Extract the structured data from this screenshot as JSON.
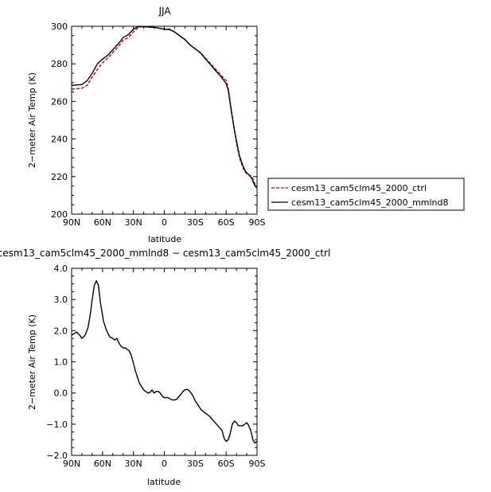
{
  "chart_data": [
    {
      "type": "line",
      "title": "JJA",
      "xlabel": "latitude",
      "ylabel": "2−meter Air Temp (K)",
      "xlim": [
        90,
        -90
      ],
      "ylim": [
        200,
        300
      ],
      "x_ticks": [
        90,
        60,
        30,
        0,
        -30,
        -60,
        -90
      ],
      "x_tick_labels": [
        "90N",
        "60N",
        "30N",
        "0",
        "30S",
        "60S",
        "90S"
      ],
      "y_ticks": [
        200,
        220,
        240,
        260,
        280,
        300
      ],
      "y_tick_labels": [
        "200",
        "220",
        "240",
        "260",
        "280",
        "300"
      ],
      "grid": false,
      "legend_position": "right",
      "series": [
        {
          "name": "cesm13_cam5clm45_2000_ctrl",
          "color": "#cc0000",
          "dash": "dashed",
          "x": [
            90,
            80,
            75,
            70,
            65,
            60,
            55,
            50,
            45,
            40,
            35,
            30,
            25,
            20,
            15,
            10,
            5,
            0,
            -5,
            -10,
            -15,
            -20,
            -25,
            -30,
            -35,
            -40,
            -45,
            -50,
            -55,
            -60,
            -62,
            -65,
            -68,
            -70,
            -73,
            -76,
            -79,
            -82,
            -85,
            -88,
            -90
          ],
          "y": [
            266.5,
            267,
            268.5,
            273,
            277,
            280.5,
            283,
            286,
            289,
            292.5,
            294,
            297,
            299.5,
            300,
            299.5,
            299.5,
            299,
            298.5,
            298.5,
            297,
            295,
            293,
            290,
            288,
            286,
            283,
            280,
            277,
            274,
            271,
            267,
            256,
            245,
            238,
            230,
            225,
            222,
            221,
            220,
            216,
            215
          ]
        },
        {
          "name": "cesm13_cam5clm45_2000_mmlnd8",
          "color": "#000000",
          "dash": "solid",
          "x": [
            90,
            80,
            75,
            70,
            65,
            60,
            55,
            50,
            45,
            40,
            35,
            30,
            25,
            20,
            15,
            10,
            5,
            0,
            -5,
            -10,
            -15,
            -20,
            -25,
            -30,
            -35,
            -40,
            -45,
            -50,
            -55,
            -60,
            -62,
            -65,
            -68,
            -70,
            -73,
            -76,
            -79,
            -82,
            -85,
            -88,
            -90
          ],
          "y": [
            268.5,
            269,
            271,
            275,
            280,
            282.5,
            284.5,
            287.5,
            290.5,
            294,
            295.5,
            298.5,
            299.8,
            299.8,
            299.6,
            299.4,
            299,
            298.4,
            298.3,
            296.9,
            294.9,
            292.9,
            290.1,
            288,
            285.8,
            282.6,
            279.4,
            276.2,
            273.2,
            269.5,
            266,
            255,
            245,
            239,
            231,
            226,
            222.5,
            221,
            219,
            215,
            214
          ]
        }
      ]
    },
    {
      "type": "line",
      "title": "cesm13_cam5clm45_2000_mmlnd8 − cesm13_cam5clm45_2000_ctrl",
      "xlabel": "latitude",
      "ylabel": "2−meter Air Temp (K)",
      "xlim": [
        90,
        -90
      ],
      "ylim": [
        -2,
        4
      ],
      "x_ticks": [
        90,
        60,
        30,
        0,
        -30,
        -60,
        -90
      ],
      "x_tick_labels": [
        "90N",
        "60N",
        "30N",
        "0",
        "30S",
        "60S",
        "90S"
      ],
      "y_ticks": [
        -2,
        -1,
        0,
        1,
        2,
        3,
        4
      ],
      "y_tick_labels": [
        "−2.0",
        "−1.0",
        "0.0",
        "1.0",
        "2.0",
        "3.0",
        "4.0"
      ],
      "grid": false,
      "series": [
        {
          "color": "#000000",
          "dash": "solid",
          "x": [
            90,
            88,
            85,
            82,
            80,
            77,
            74,
            72,
            70,
            68,
            66,
            64,
            62,
            59,
            56,
            53,
            50,
            48,
            46,
            44,
            42,
            40,
            38,
            36,
            34,
            32,
            30,
            28,
            26,
            24,
            22,
            20,
            18,
            16,
            14,
            12,
            10,
            8,
            6,
            4,
            2,
            0,
            -2,
            -4,
            -6,
            -8,
            -10,
            -12,
            -14,
            -16,
            -18,
            -20,
            -22,
            -24,
            -26,
            -28,
            -30,
            -33,
            -36,
            -40,
            -44,
            -48,
            -52,
            -56,
            -58,
            -60,
            -62,
            -64,
            -66,
            -68,
            -70,
            -72,
            -74,
            -76,
            -78,
            -80,
            -82,
            -84,
            -86,
            -88,
            -90
          ],
          "y": [
            1.85,
            1.9,
            1.95,
            1.85,
            1.75,
            1.85,
            2.1,
            2.5,
            3.0,
            3.45,
            3.6,
            3.45,
            2.9,
            2.3,
            2.0,
            1.8,
            1.75,
            1.7,
            1.75,
            1.6,
            1.5,
            1.45,
            1.45,
            1.4,
            1.35,
            1.2,
            0.95,
            0.7,
            0.5,
            0.3,
            0.2,
            0.1,
            0.05,
            0.0,
            0.02,
            0.1,
            0.0,
            0.05,
            0.05,
            0.0,
            -0.1,
            -0.15,
            -0.15,
            -0.15,
            -0.2,
            -0.22,
            -0.22,
            -0.2,
            -0.12,
            -0.05,
            0.05,
            0.1,
            0.12,
            0.08,
            0.0,
            -0.1,
            -0.25,
            -0.4,
            -0.55,
            -0.65,
            -0.75,
            -0.9,
            -1.05,
            -1.2,
            -1.45,
            -1.55,
            -1.5,
            -1.3,
            -1.0,
            -0.9,
            -0.95,
            -1.05,
            -1.05,
            -1.05,
            -1.0,
            -0.95,
            -1.05,
            -1.2,
            -1.5,
            -1.6,
            -1.55
          ]
        }
      ]
    }
  ]
}
